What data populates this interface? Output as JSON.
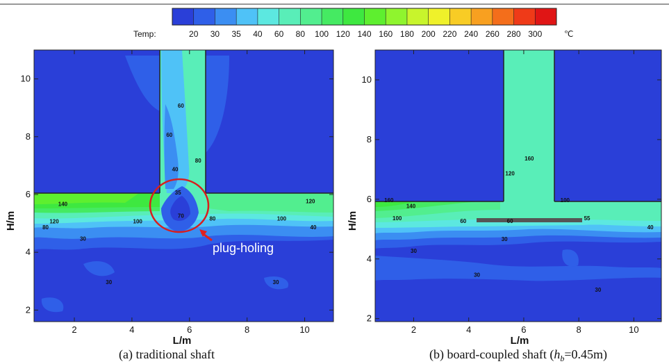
{
  "colorbar": {
    "label": "Temp:",
    "unit": "℃",
    "levels": [
      20,
      30,
      35,
      40,
      60,
      80,
      100,
      120,
      140,
      160,
      180,
      200,
      220,
      240,
      260,
      280,
      300
    ],
    "colors": [
      "#2a3fd8",
      "#2f5fe8",
      "#3b8ef2",
      "#4fc2f7",
      "#5ce8e0",
      "#59eeb8",
      "#52ee8f",
      "#45ea62",
      "#3ee840",
      "#5eef2f",
      "#8ff52e",
      "#c8f52c",
      "#eff12a",
      "#f8cc25",
      "#f8a020",
      "#f46e1b",
      "#ef3a18",
      "#e01515"
    ]
  },
  "chart_data": [
    {
      "type": "heatmap",
      "title": "",
      "caption": "(a) traditional shaft",
      "xlabel": "L/m",
      "ylabel": "H/m",
      "xlim": [
        0.6,
        11
      ],
      "ylim": [
        1.6,
        11
      ],
      "xticks": [
        2,
        4,
        6,
        8,
        10
      ],
      "yticks": [
        2,
        4,
        6,
        8,
        10
      ],
      "contour_labels": [
        {
          "text": "60",
          "x": 5.7,
          "y": 9.0
        },
        {
          "text": "60",
          "x": 5.3,
          "y": 8.0
        },
        {
          "text": "80",
          "x": 6.3,
          "y": 7.1
        },
        {
          "text": "40",
          "x": 5.5,
          "y": 6.8
        },
        {
          "text": "35",
          "x": 5.6,
          "y": 6.0
        },
        {
          "text": "70",
          "x": 5.7,
          "y": 5.2
        },
        {
          "text": "140",
          "x": 1.6,
          "y": 5.6
        },
        {
          "text": "120",
          "x": 1.3,
          "y": 5.0
        },
        {
          "text": "100",
          "x": 4.2,
          "y": 5.0
        },
        {
          "text": "80",
          "x": 1.0,
          "y": 4.8
        },
        {
          "text": "80",
          "x": 6.8,
          "y": 5.1
        },
        {
          "text": "100",
          "x": 9.2,
          "y": 5.1
        },
        {
          "text": "120",
          "x": 10.2,
          "y": 5.7
        },
        {
          "text": "40",
          "x": 10.3,
          "y": 4.8
        },
        {
          "text": "30",
          "x": 2.3,
          "y": 4.4
        },
        {
          "text": "30",
          "x": 3.2,
          "y": 2.9
        },
        {
          "text": "30",
          "x": 9.0,
          "y": 2.9
        }
      ],
      "annotation": "plug-holing"
    },
    {
      "type": "heatmap",
      "title": "",
      "caption_text": "(b) board-coupled shaft (",
      "caption_italic": "h",
      "caption_sub": "b",
      "caption_end": "=0.45m)",
      "xlabel": "L/m",
      "ylabel": "H/m",
      "xlim": [
        0.6,
        11
      ],
      "ylim": [
        1.9,
        11
      ],
      "xticks": [
        2,
        4,
        6,
        8,
        10
      ],
      "yticks": [
        2,
        4,
        6,
        8,
        10
      ],
      "contour_labels": [
        {
          "text": "160",
          "x": 6.2,
          "y": 7.3
        },
        {
          "text": "120",
          "x": 5.5,
          "y": 6.8
        },
        {
          "text": "160",
          "x": 1.1,
          "y": 5.9
        },
        {
          "text": "140",
          "x": 1.9,
          "y": 5.7
        },
        {
          "text": "100",
          "x": 1.4,
          "y": 5.3
        },
        {
          "text": "100",
          "x": 7.5,
          "y": 5.9
        },
        {
          "text": "60",
          "x": 3.8,
          "y": 5.2
        },
        {
          "text": "60",
          "x": 5.5,
          "y": 5.2
        },
        {
          "text": "55",
          "x": 8.3,
          "y": 5.3
        },
        {
          "text": "40",
          "x": 10.6,
          "y": 5.0
        },
        {
          "text": "30",
          "x": 5.3,
          "y": 4.6
        },
        {
          "text": "30",
          "x": 2.0,
          "y": 4.2
        },
        {
          "text": "30",
          "x": 4.3,
          "y": 3.4
        },
        {
          "text": "30",
          "x": 8.7,
          "y": 2.9
        }
      ]
    }
  ]
}
